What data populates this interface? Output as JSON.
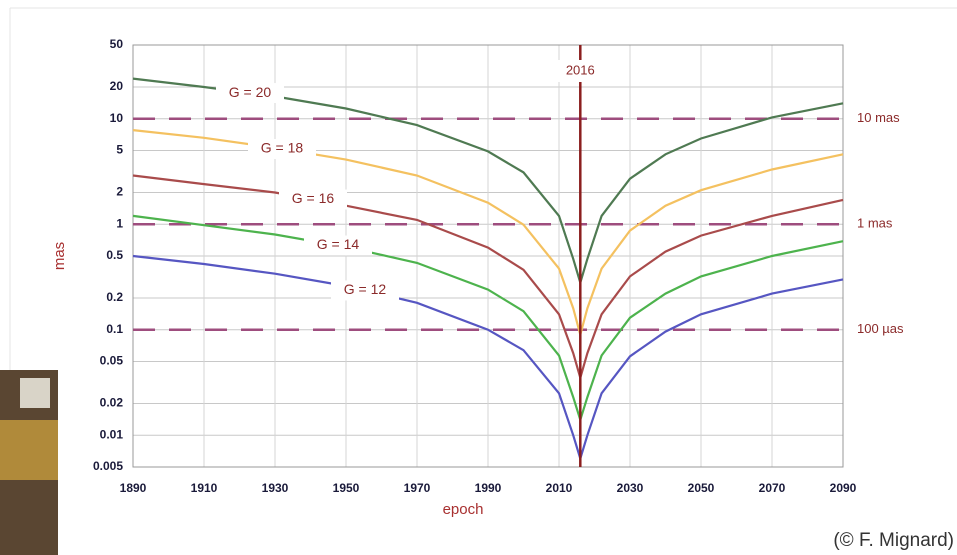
{
  "chart_data": {
    "type": "line",
    "x_label": "epoch",
    "y_label": "mas",
    "x": [
      1890,
      1910,
      1930,
      1950,
      1970,
      1990,
      2000,
      2010,
      2014,
      2016,
      2018,
      2022,
      2030,
      2040,
      2050,
      2070,
      2090
    ],
    "series": [
      {
        "name": "G = 20",
        "color": "#4f7a52",
        "values": [
          24,
          20,
          16.3,
          12.5,
          8.7,
          4.9,
          3.1,
          1.2,
          0.47,
          0.28,
          0.47,
          1.2,
          2.7,
          4.6,
          6.5,
          10.3,
          14
        ]
      },
      {
        "name": "G = 18",
        "color": "#f4c160",
        "values": [
          7.8,
          6.6,
          5.3,
          4.1,
          2.9,
          1.6,
          0.99,
          0.38,
          0.16,
          0.09,
          0.16,
          0.38,
          0.87,
          1.5,
          2.1,
          3.3,
          4.6
        ]
      },
      {
        "name": "G = 16",
        "color": "#a94b4b",
        "values": [
          2.9,
          2.4,
          2.0,
          1.5,
          1.1,
          0.6,
          0.37,
          0.14,
          0.06,
          0.035,
          0.06,
          0.14,
          0.32,
          0.55,
          0.78,
          1.2,
          1.7
        ]
      },
      {
        "name": "G = 14",
        "color": "#4db34d",
        "values": [
          1.2,
          0.98,
          0.8,
          0.61,
          0.43,
          0.24,
          0.15,
          0.057,
          0.023,
          0.014,
          0.023,
          0.057,
          0.13,
          0.22,
          0.32,
          0.5,
          0.69
        ]
      },
      {
        "name": "G = 12",
        "color": "#5656c2",
        "values": [
          0.5,
          0.42,
          0.34,
          0.26,
          0.18,
          0.1,
          0.064,
          0.025,
          0.01,
          0.006,
          0.01,
          0.025,
          0.056,
          0.096,
          0.14,
          0.22,
          0.3
        ]
      }
    ],
    "xlim": [
      1890,
      2090
    ],
    "xticks": [
      1890,
      1910,
      1930,
      1950,
      1970,
      1990,
      2010,
      2030,
      2050,
      2070,
      2090
    ],
    "ylim": [
      0.005,
      50
    ],
    "yticks": [
      0.005,
      0.01,
      0.02,
      0.05,
      0.1,
      0.2,
      0.5,
      1,
      2,
      5,
      10,
      20,
      50
    ],
    "log_y": true,
    "grid": true,
    "reference_lines": [
      {
        "value": 10,
        "label": "10 mas"
      },
      {
        "value": 1,
        "label": "1 mas"
      },
      {
        "value": 0.1,
        "label": "100 µas"
      }
    ],
    "vline": 2016
  },
  "credit": "(© F. Mignard)"
}
